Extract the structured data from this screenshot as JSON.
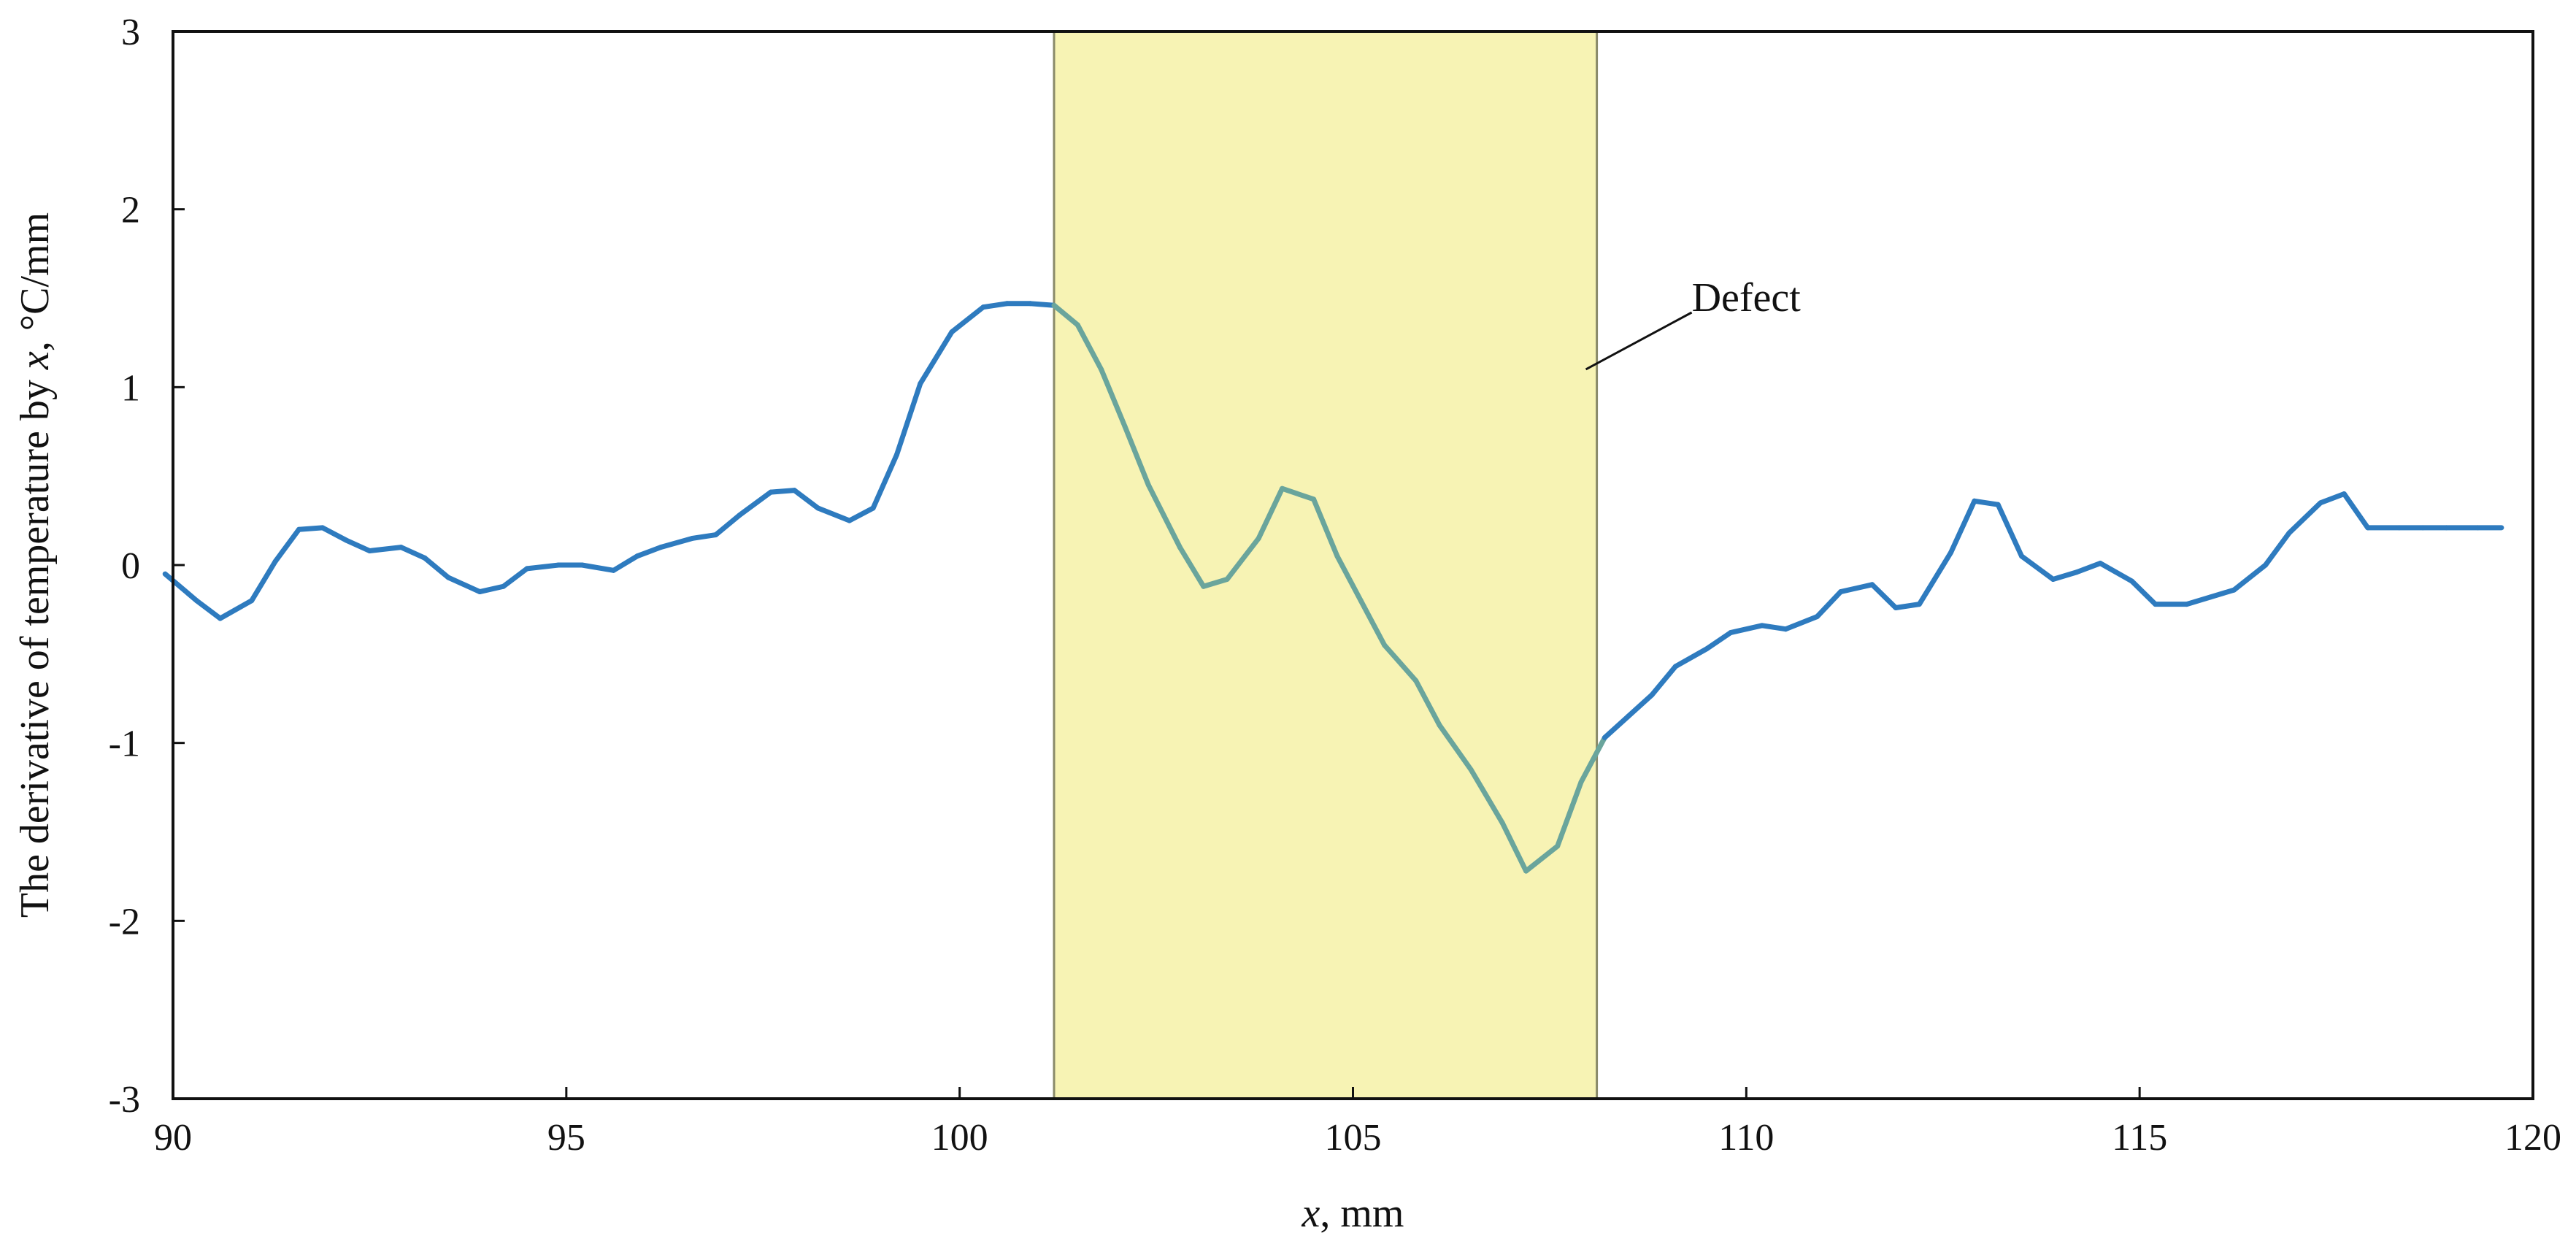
{
  "chart_data": {
    "type": "line",
    "title": "",
    "xlabel": {
      "var": "x",
      "unit": ", mm"
    },
    "ylabel": {
      "prefix": "The derivative of temperature by ",
      "var": "x",
      "unit": ", °C/mm"
    },
    "xlim": [
      90,
      120
    ],
    "ylim": [
      -3,
      3
    ],
    "x_ticks": [
      90,
      95,
      100,
      105,
      110,
      115,
      120
    ],
    "y_ticks": [
      3,
      2,
      1,
      0,
      -1,
      -2,
      -3
    ],
    "grid": false,
    "legend": "none",
    "colors": {
      "line": "#2e7bbf",
      "line_in_region": "#6aa59c",
      "highlight_fill": "#f7f3b4",
      "highlight_stroke": "#8a8a6a",
      "axis": "#111111"
    },
    "highlight_region": {
      "x_start": 101.2,
      "x_end": 108.1,
      "label": "Defect"
    },
    "series": [
      {
        "x": [
          89.9,
          90.3,
          90.6,
          91.0,
          91.3,
          91.6,
          91.9,
          92.2,
          92.5,
          92.9,
          93.2,
          93.5,
          93.9,
          94.2,
          94.5,
          94.9,
          95.2,
          95.6,
          95.9,
          96.2,
          96.6,
          96.9,
          97.2,
          97.6,
          97.9,
          98.2,
          98.6,
          98.9,
          99.2,
          99.5,
          99.9,
          100.3,
          100.6,
          100.9,
          101.2,
          101.5,
          101.8,
          102.1,
          102.4,
          102.8,
          103.1,
          103.4,
          103.8,
          104.1,
          104.5,
          104.8,
          105.1,
          105.4,
          105.8,
          106.1,
          106.5,
          106.9,
          107.2,
          107.6,
          107.9,
          108.2,
          108.5,
          108.8,
          109.1,
          109.5,
          109.8,
          110.2,
          110.5,
          110.9,
          111.2,
          111.6,
          111.9,
          112.2,
          112.6,
          112.9,
          113.2,
          113.5,
          113.9,
          114.2,
          114.5,
          114.9,
          115.2,
          115.6,
          115.9,
          116.2,
          116.6,
          116.9,
          117.3,
          117.6,
          117.9,
          118.3,
          118.6,
          118.9,
          119.3,
          119.6
        ],
        "y": [
          -0.05,
          -0.2,
          -0.3,
          -0.2,
          0.02,
          0.2,
          0.21,
          0.14,
          0.08,
          0.1,
          0.04,
          -0.07,
          -0.15,
          -0.12,
          -0.02,
          0.0,
          0.0,
          -0.03,
          0.05,
          0.1,
          0.15,
          0.17,
          0.28,
          0.41,
          0.42,
          0.32,
          0.25,
          0.32,
          0.62,
          1.02,
          1.31,
          1.45,
          1.47,
          1.47,
          1.46,
          1.35,
          1.1,
          0.78,
          0.45,
          0.1,
          -0.12,
          -0.08,
          0.15,
          0.43,
          0.37,
          0.05,
          -0.2,
          -0.45,
          -0.65,
          -0.9,
          -1.15,
          -1.45,
          -1.72,
          -1.58,
          -1.22,
          -0.97,
          -0.85,
          -0.73,
          -0.57,
          -0.47,
          -0.38,
          -0.34,
          -0.36,
          -0.29,
          -0.15,
          -0.11,
          -0.24,
          -0.22,
          0.07,
          0.36,
          0.34,
          0.05,
          -0.08,
          -0.04,
          0.01,
          -0.09,
          -0.22,
          -0.22,
          -0.18,
          -0.14,
          0.0,
          0.18,
          0.35,
          0.4,
          0.21,
          0.21,
          0.21,
          0.21,
          0.21,
          0.21
        ]
      }
    ]
  }
}
